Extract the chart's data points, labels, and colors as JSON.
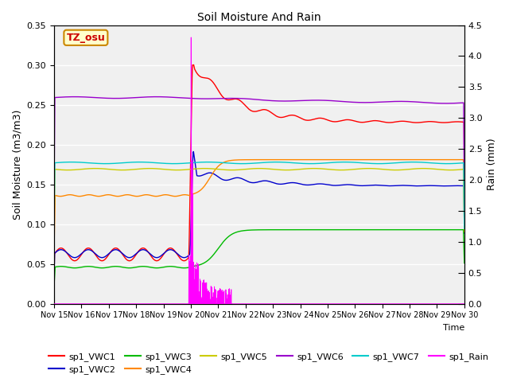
{
  "title": "Soil Moisture And Rain",
  "ylabel_left": "Soil Moisture (m3/m3)",
  "ylabel_right": "Rain (mm)",
  "xlabel": "Time",
  "annotation": "TZ_osu",
  "ylim_left": [
    0.0,
    0.35
  ],
  "ylim_right": [
    0.0,
    4.5
  ],
  "bg_color": "#ffffff",
  "plot_bg_color": "#f0f0f0",
  "grid_color": "#ffffff",
  "colors": {
    "vwc1": "#ff0000",
    "vwc2": "#0000cc",
    "vwc3": "#00bb00",
    "vwc4": "#ff8800",
    "vwc5": "#cccc00",
    "vwc6": "#9900cc",
    "vwc7": "#00cccc",
    "rain": "#ff00ff"
  },
  "legend": [
    [
      "sp1_VWC1",
      "#ff0000"
    ],
    [
      "sp1_VWC2",
      "#0000cc"
    ],
    [
      "sp1_VWC3",
      "#00bb00"
    ],
    [
      "sp1_VWC4",
      "#ff8800"
    ],
    [
      "sp1_VWC5",
      "#cccc00"
    ],
    [
      "sp1_VWC6",
      "#9900cc"
    ],
    [
      "sp1_VWC7",
      "#00cccc"
    ],
    [
      "sp1_Rain",
      "#ff00ff"
    ]
  ]
}
